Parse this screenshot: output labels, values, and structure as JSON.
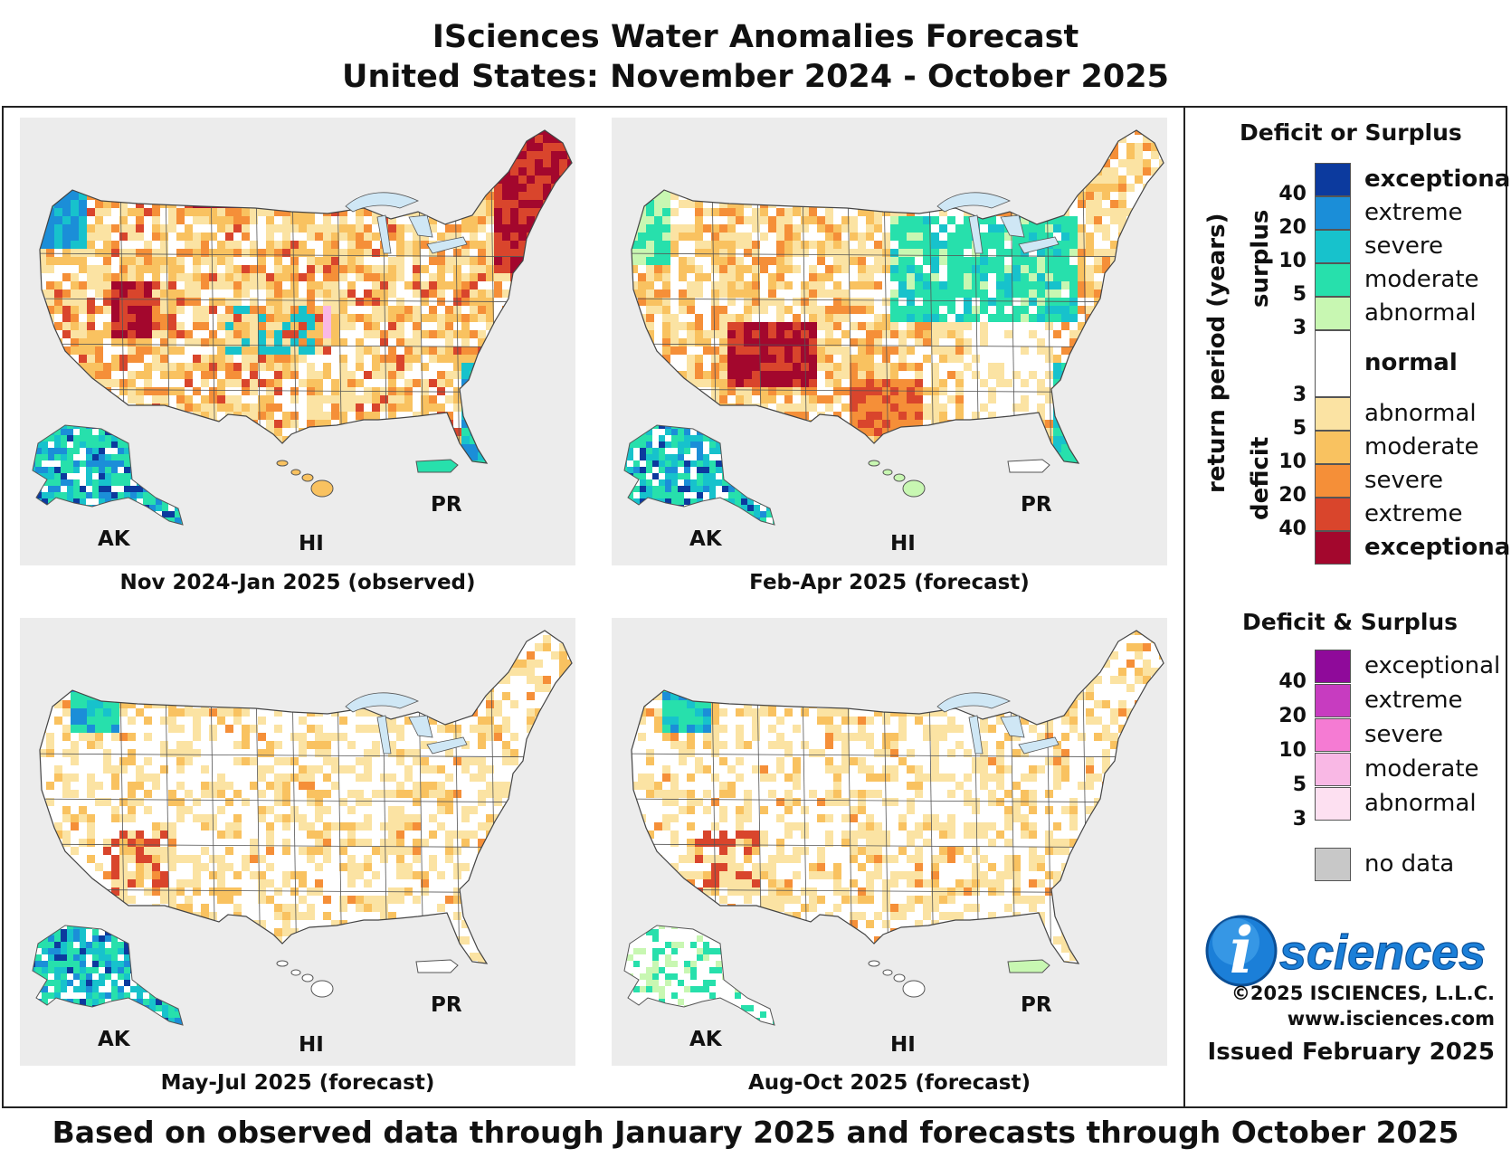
{
  "title": {
    "line1": "ISciences Water Anomalies Forecast",
    "line2": "United States: November 2024 - October 2025"
  },
  "panels": [
    {
      "caption": "Nov 2024-Jan 2025 (observed)",
      "ak": "AK",
      "hi": "HI",
      "pr": "PR",
      "palette": "mixed-dry"
    },
    {
      "caption": "Feb-Apr 2025 (forecast)",
      "ak": "AK",
      "hi": "HI",
      "pr": "PR",
      "palette": "east-wet"
    },
    {
      "caption": "May-Jul 2025 (forecast)",
      "ak": "AK",
      "hi": "HI",
      "pr": "PR",
      "palette": "mild-dry"
    },
    {
      "caption": "Aug-Oct 2025 (forecast)",
      "ak": "AK",
      "hi": "HI",
      "pr": "PR",
      "palette": "mild-dry"
    }
  ],
  "legend": {
    "deficit_or_surplus_title": "Deficit or Surplus",
    "surplus_label": "surplus",
    "deficit_label": "deficit",
    "return_period_label": "return period (years)",
    "surplus_classes": [
      {
        "label": "exceptional",
        "color": "#0c3a9e",
        "bold": true
      },
      {
        "label": "extreme",
        "color": "#1b8ed8",
        "bold": false
      },
      {
        "label": "severe",
        "color": "#17c2cc",
        "bold": false
      },
      {
        "label": "moderate",
        "color": "#27e0ac",
        "bold": false
      },
      {
        "label": "abnormal",
        "color": "#c8f7b2",
        "bold": false
      }
    ],
    "normal_label": "normal",
    "normal_color": "#ffffff",
    "deficit_classes": [
      {
        "label": "abnormal",
        "color": "#fbe3a3",
        "bold": false
      },
      {
        "label": "moderate",
        "color": "#f9c260",
        "bold": false
      },
      {
        "label": "severe",
        "color": "#f58f38",
        "bold": false
      },
      {
        "label": "extreme",
        "color": "#d9452c",
        "bold": false
      },
      {
        "label": "exceptional",
        "color": "#a3072d",
        "bold": true
      }
    ],
    "surplus_ticks": [
      "40",
      "20",
      "10",
      "5",
      "3"
    ],
    "deficit_ticks": [
      "3",
      "5",
      "10",
      "20",
      "40"
    ],
    "deficit_and_surplus_title": "Deficit & Surplus",
    "both_classes": [
      {
        "label": "exceptional",
        "color": "#8f0a9a"
      },
      {
        "label": "extreme",
        "color": "#c73cc0"
      },
      {
        "label": "severe",
        "color": "#f57bd3"
      },
      {
        "label": "moderate",
        "color": "#f9b8e5"
      },
      {
        "label": "abnormal",
        "color": "#fde0f1"
      }
    ],
    "both_ticks": [
      "40",
      "20",
      "10",
      "5",
      "3"
    ],
    "no_data_label": "no data",
    "no_data_color": "#c8c8c8"
  },
  "brand": {
    "logo_letter": "i",
    "logo_text": "sciences",
    "copyright": "©2025 ISCIENCES, L.L.C.",
    "website": "www.isciences.com",
    "issued": "Issued February 2025"
  },
  "footer": "Based on observed data through January 2025 and forecasts through October 2025"
}
